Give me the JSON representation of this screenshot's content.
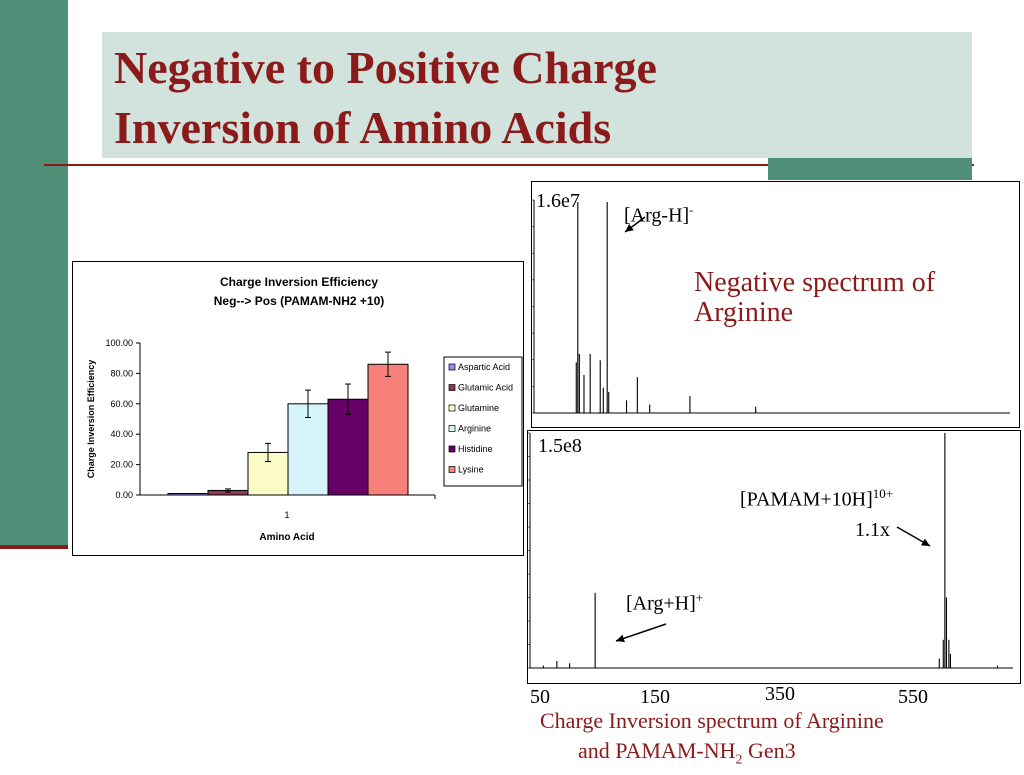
{
  "slide": {
    "title_line1": "Negative to Positive Charge",
    "title_line2": "Inversion of Amino Acids"
  },
  "colors": {
    "sidebar": "#4f8f78",
    "accent_red": "#8b1a1a",
    "title_bg": "#d2e2dc"
  },
  "chart_data": [
    {
      "type": "bar",
      "title": "Charge Inversion Efficiency",
      "subtitle": "Neg--> Pos (PAMAM-NH2 +10)",
      "xlabel": "Amino Acid",
      "ylabel": "Charge Inversion Efficiency",
      "categories": [
        "1"
      ],
      "ylim": [
        0,
        100
      ],
      "yticks": [
        "0.00",
        "20.00",
        "40.00",
        "60.00",
        "80.00",
        "100.00"
      ],
      "legend_position": "right",
      "series": [
        {
          "name": "Aspartic Acid",
          "values": [
            1
          ],
          "error": [
            0
          ],
          "color": "#8a8ef0"
        },
        {
          "name": "Glutamic Acid",
          "values": [
            3
          ],
          "error": [
            1
          ],
          "color": "#8b3a5a"
        },
        {
          "name": "Glutamine",
          "values": [
            28
          ],
          "error": [
            6
          ],
          "color": "#fbfbc8"
        },
        {
          "name": "Arginine",
          "values": [
            60
          ],
          "error": [
            9
          ],
          "color": "#d6f4fa"
        },
        {
          "name": "Histidine",
          "values": [
            63
          ],
          "error": [
            10
          ],
          "color": "#660066"
        },
        {
          "name": "Lysine",
          "values": [
            86
          ],
          "error": [
            8
          ],
          "color": "#f8807a"
        }
      ]
    },
    {
      "type": "line",
      "title": "Negative spectrum of Arginine",
      "intensity_label": "1.6e7",
      "annotation": "[Arg-H]",
      "annotation_sup": "-",
      "xlim": [
        50,
        650
      ],
      "peaks": [
        {
          "x": 93,
          "y": 0.24
        },
        {
          "x": 95,
          "y": 1.0
        },
        {
          "x": 97,
          "y": 0.28
        },
        {
          "x": 103,
          "y": 0.18
        },
        {
          "x": 111,
          "y": 0.28
        },
        {
          "x": 124,
          "y": 0.25
        },
        {
          "x": 128,
          "y": 0.12
        },
        {
          "x": 133,
          "y": 1.0
        },
        {
          "x": 135,
          "y": 0.1
        },
        {
          "x": 158,
          "y": 0.06
        },
        {
          "x": 172,
          "y": 0.17
        },
        {
          "x": 188,
          "y": 0.04
        },
        {
          "x": 240,
          "y": 0.08
        },
        {
          "x": 325,
          "y": 0.03
        }
      ]
    },
    {
      "type": "line",
      "title": "Charge Inversion spectrum of Arginine and PAMAM-NH2 Gen3",
      "intensity_label": "1.5e8",
      "xticks": [
        "50",
        "150",
        "350",
        "550"
      ],
      "annotations": [
        {
          "label": "[PAMAM+10H]",
          "sup": "10+",
          "note": "1.1x"
        },
        {
          "label": "[Arg+H]",
          "sup": "+"
        }
      ],
      "caption_line1": "Charge Inversion spectrum of Arginine",
      "caption_line2_main": "and PAMAM-NH",
      "caption_line2_sub": "2",
      "caption_line2_end": " Gen3",
      "peaks": [
        {
          "x": 63,
          "y": 0.01
        },
        {
          "x": 80,
          "y": 0.03
        },
        {
          "x": 96,
          "y": 0.02
        },
        {
          "x": 128,
          "y": 0.32
        },
        {
          "x": 560,
          "y": 0.04
        },
        {
          "x": 565,
          "y": 0.12
        },
        {
          "x": 567,
          "y": 1.0
        },
        {
          "x": 569,
          "y": 0.3
        },
        {
          "x": 572,
          "y": 0.12
        },
        {
          "x": 574,
          "y": 0.06
        },
        {
          "x": 633,
          "y": 0.01
        }
      ]
    }
  ]
}
